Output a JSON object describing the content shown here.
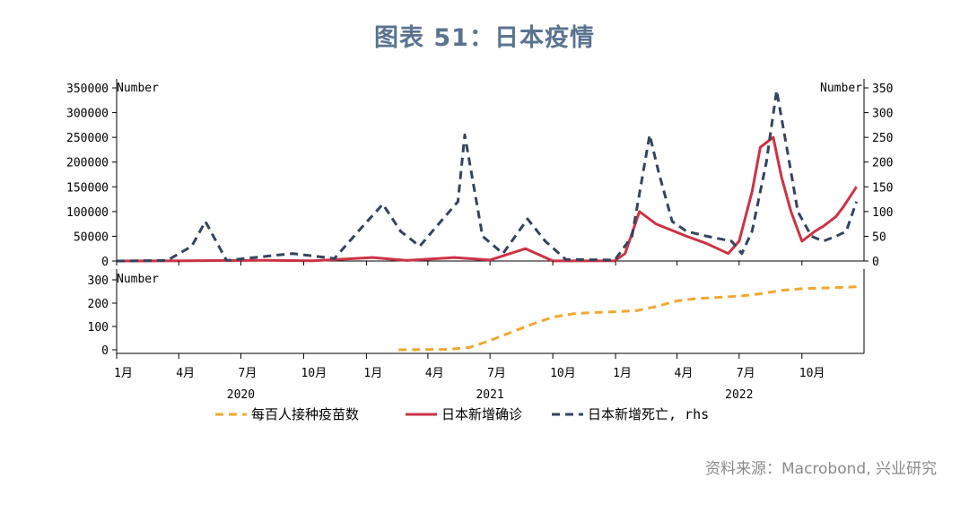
{
  "title": "图表 51：日本疫情",
  "source": "资料来源：Macrobond, 兴业研究",
  "colors": {
    "vaccine": "#f0a830",
    "cases": "#cc3344",
    "deaths": "#34445e",
    "title": "#5a7390"
  },
  "chart_data": [
    {
      "type": "line",
      "panel": "top",
      "left_unit": "Number",
      "right_unit": "Number",
      "ylim_left": [
        0,
        350000
      ],
      "yticks_left": [
        "350000",
        "300000",
        "250000",
        "200000",
        "150000",
        "100000",
        "50000",
        "0"
      ],
      "ylim_right": [
        0,
        350
      ],
      "yticks_right": [
        "350",
        "300",
        "250",
        "200",
        "150",
        "100",
        "50",
        "0"
      ],
      "x_range": [
        "2020-01-01",
        "2022-12-31"
      ],
      "series": [
        {
          "name": "日本新增确诊",
          "axis": "left",
          "style": "solid",
          "x": [
            "2020-01-01",
            "2020-04-15",
            "2020-08-05",
            "2020-10-15",
            "2021-01-10",
            "2021-03-01",
            "2021-05-10",
            "2021-07-01",
            "2021-08-22",
            "2021-10-01",
            "2021-12-31",
            "2022-01-15",
            "2022-02-05",
            "2022-03-01",
            "2022-04-15",
            "2022-05-15",
            "2022-06-15",
            "2022-07-01",
            "2022-07-20",
            "2022-08-01",
            "2022-08-20",
            "2022-09-01",
            "2022-09-15",
            "2022-10-01",
            "2022-10-20",
            "2022-11-01",
            "2022-11-20",
            "2022-12-01",
            "2022-12-20"
          ],
          "values": [
            0,
            600,
            1500,
            600,
            7000,
            1000,
            7000,
            2000,
            25000,
            200,
            500,
            15000,
            100000,
            75000,
            50000,
            35000,
            15000,
            40000,
            140000,
            230000,
            250000,
            170000,
            100000,
            40000,
            60000,
            70000,
            90000,
            110000,
            150000
          ]
        },
        {
          "name": "日本新增死亡",
          "axis": "right",
          "style": "dashed",
          "x": [
            "2020-01-01",
            "2020-03-15",
            "2020-04-20",
            "2020-05-10",
            "2020-06-10",
            "2020-08-10",
            "2020-09-15",
            "2020-11-15",
            "2020-12-20",
            "2021-01-25",
            "2021-02-20",
            "2021-03-20",
            "2021-04-20",
            "2021-05-15",
            "2021-05-25",
            "2021-06-20",
            "2021-07-20",
            "2021-08-25",
            "2021-09-20",
            "2021-10-20",
            "2021-12-31",
            "2022-01-25",
            "2022-02-20",
            "2022-03-05",
            "2022-03-25",
            "2022-04-15",
            "2022-05-15",
            "2022-06-20",
            "2022-07-05",
            "2022-07-20",
            "2022-08-10",
            "2022-08-25",
            "2022-09-10",
            "2022-09-25",
            "2022-10-15",
            "2022-11-01",
            "2022-11-20",
            "2022-12-05",
            "2022-12-20"
          ],
          "values": [
            0,
            1,
            30,
            80,
            1,
            10,
            15,
            5,
            60,
            115,
            60,
            30,
            80,
            120,
            255,
            50,
            15,
            85,
            40,
            3,
            2,
            50,
            255,
            180,
            80,
            60,
            50,
            40,
            15,
            60,
            200,
            345,
            220,
            100,
            50,
            40,
            50,
            60,
            120
          ]
        }
      ]
    },
    {
      "type": "line",
      "panel": "bottom",
      "left_unit": "Number",
      "ylim": [
        0,
        300
      ],
      "yticks": [
        "300",
        "200",
        "100",
        "0"
      ],
      "x_range": [
        "2020-01-01",
        "2022-12-31"
      ],
      "series": [
        {
          "name": "每百人接种疫苗数",
          "axis": "left",
          "style": "dashed",
          "x": [
            "2021-02-17",
            "2021-05-01",
            "2021-06-01",
            "2021-07-01",
            "2021-08-01",
            "2021-09-01",
            "2021-10-01",
            "2021-11-01",
            "2021-12-01",
            "2022-01-01",
            "2022-02-01",
            "2022-03-01",
            "2022-04-01",
            "2022-05-01",
            "2022-06-01",
            "2022-07-01",
            "2022-08-01",
            "2022-09-01",
            "2022-10-01",
            "2022-11-01",
            "2022-12-20"
          ],
          "values": [
            0,
            2,
            10,
            40,
            75,
            110,
            140,
            155,
            160,
            163,
            168,
            185,
            210,
            220,
            225,
            230,
            240,
            255,
            262,
            265,
            270
          ]
        }
      ]
    }
  ],
  "x_axis": {
    "month_labels": [
      "1月",
      "4月",
      "7月",
      "10月",
      "1月",
      "4月",
      "7月",
      "10月",
      "1月",
      "4月",
      "7月",
      "10月"
    ],
    "year_labels": [
      "2020",
      "2021",
      "2022"
    ]
  },
  "legend": [
    {
      "label": "每百人接种疫苗数",
      "color": "#f0a830",
      "style": "dashed"
    },
    {
      "label": "日本新增确诊",
      "color": "#cc3344",
      "style": "solid"
    },
    {
      "label": "日本新增死亡, rhs",
      "color": "#34445e",
      "style": "dashed"
    }
  ]
}
